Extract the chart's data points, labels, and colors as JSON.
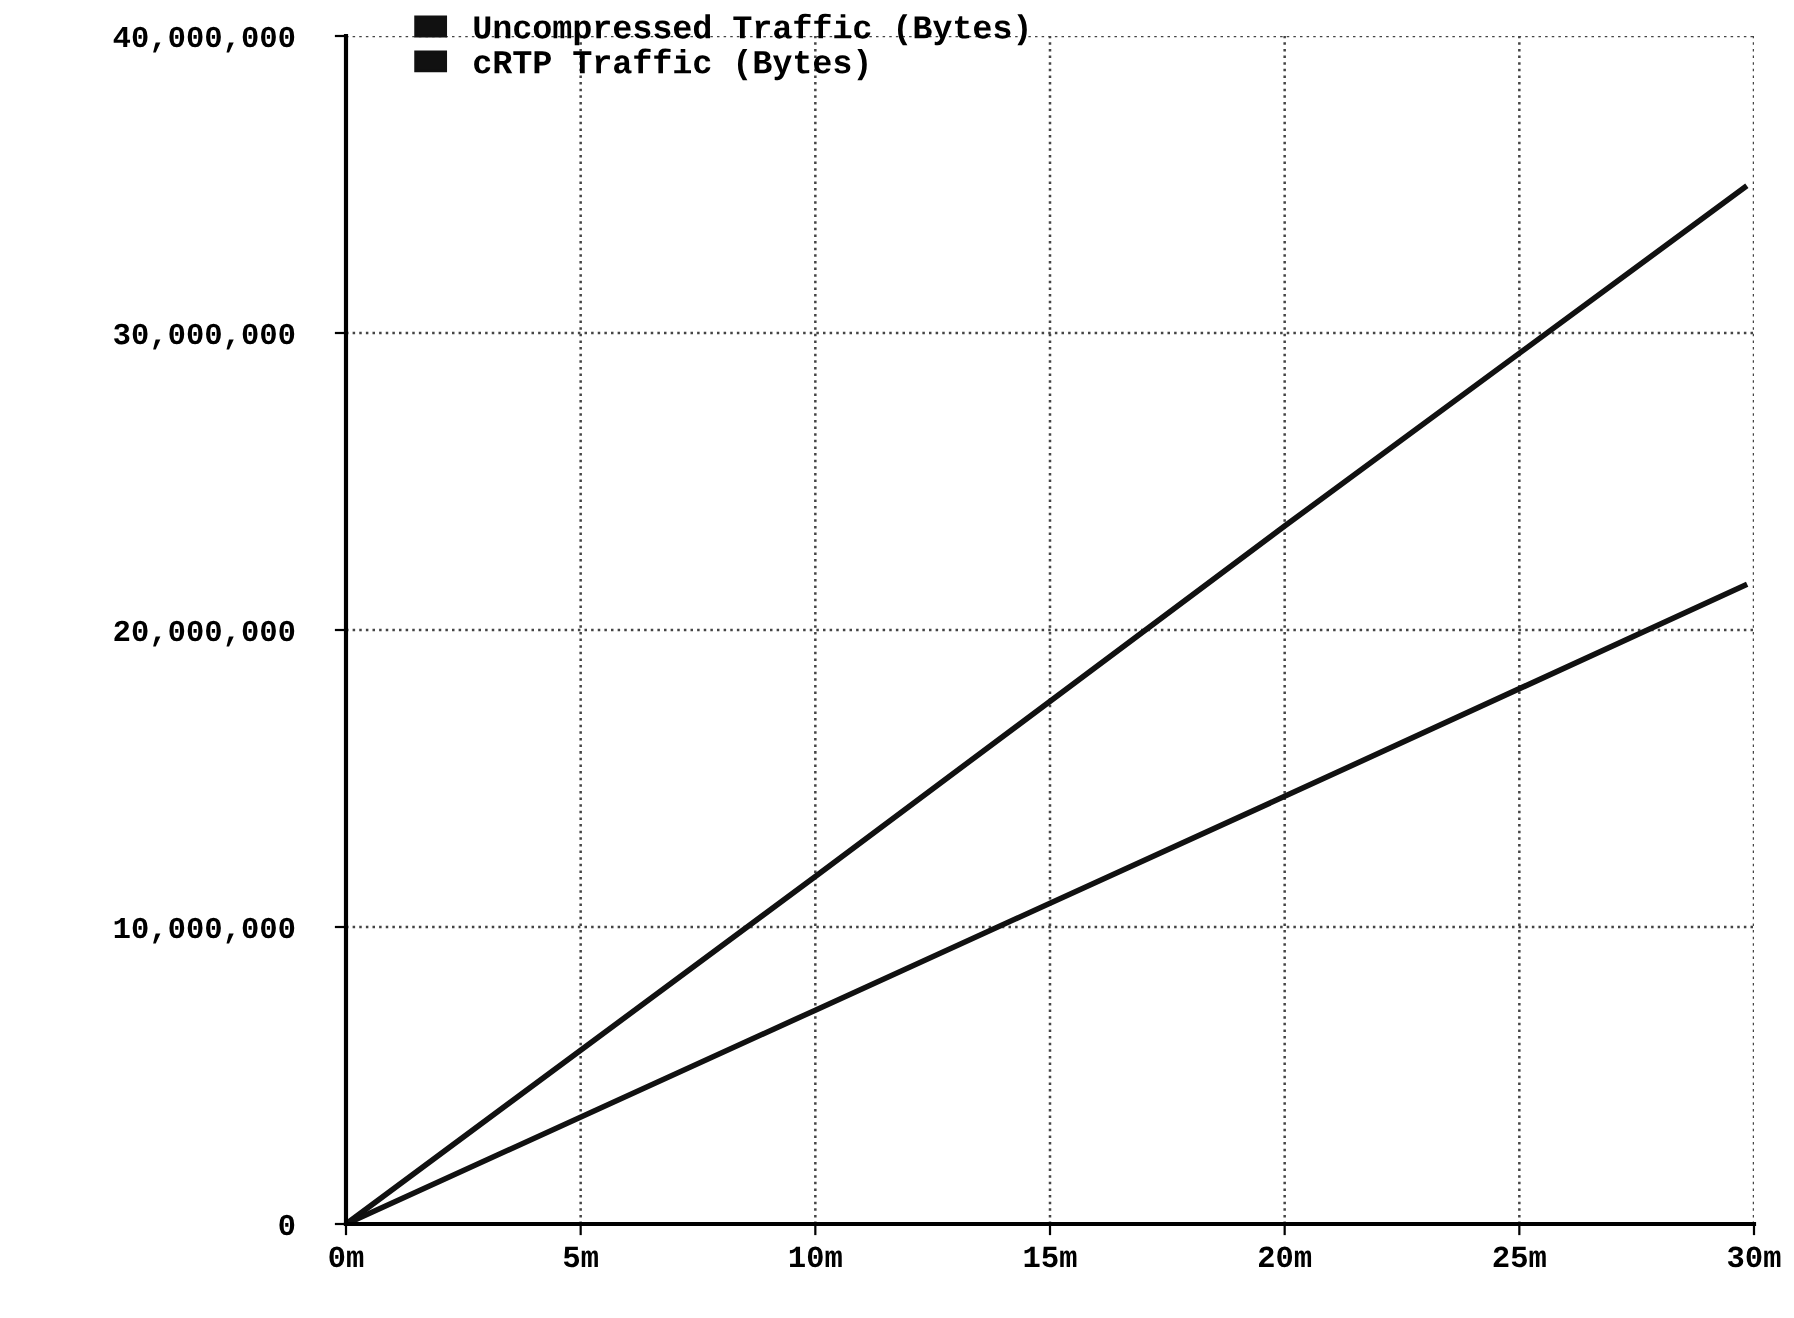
{
  "chart_data": {
    "type": "line",
    "series": [
      {
        "name": "Uncompressed Traffic (Bytes)",
        "color": "#111111",
        "x": [
          0,
          10,
          20,
          29.8
        ],
        "values": [
          0,
          11700000,
          23500000,
          34900000
        ]
      },
      {
        "name": "cRTP Traffic (Bytes)",
        "color": "#111111",
        "x": [
          0,
          10,
          20,
          29.8
        ],
        "values": [
          0,
          7200000,
          14400000,
          21500000
        ]
      }
    ],
    "xlim": [
      0,
      30
    ],
    "xticks": [
      {
        "value": 0,
        "label": "0m"
      },
      {
        "value": 5,
        "label": "5m"
      },
      {
        "value": 10,
        "label": "10m"
      },
      {
        "value": 15,
        "label": "15m"
      },
      {
        "value": 20,
        "label": "20m"
      },
      {
        "value": 25,
        "label": "25m"
      },
      {
        "value": 30,
        "label": "30m"
      }
    ],
    "ylim": [
      0,
      40000000
    ],
    "yticks": [
      0,
      {
        "value": 10000000,
        "label": "10,000,000"
      },
      {
        "value": 20000000,
        "label": "20,000,000"
      },
      {
        "value": 30000000,
        "label": "30,000,000"
      },
      {
        "value": 40000000,
        "label": "40,000,000"
      }
    ],
    "grid": true,
    "legend": "top left",
    "marker": "none",
    "line_style": "solid"
  }
}
